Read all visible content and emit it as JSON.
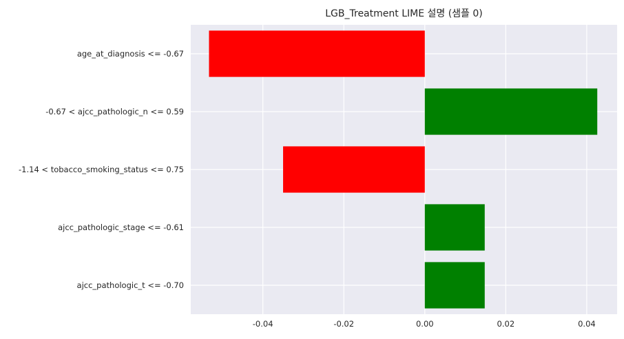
{
  "chart_data": {
    "type": "bar",
    "orientation": "horizontal",
    "title": "LGB_Treatment LIME 설명 (샘플 0)",
    "xlabel": "",
    "ylabel": "",
    "categories": [
      "age_at_diagnosis <= -0.67",
      "-0.67 < ajcc_pathologic_n <= 0.59",
      "-1.14 < tobacco_smoking_status <= 0.75",
      "ajcc_pathologic_stage <= -0.61",
      "ajcc_pathologic_t <= -0.70"
    ],
    "values": [
      -0.0533,
      0.0426,
      -0.035,
      0.0148,
      0.0148
    ],
    "xlim": [
      -0.0578,
      0.0475
    ],
    "xticks": [
      -0.04,
      -0.02,
      0.0,
      0.02,
      0.04
    ],
    "xtick_labels": [
      "-0.04",
      "-0.02",
      "0.00",
      "0.02",
      "0.04"
    ],
    "grid": true,
    "legend": "none",
    "colors": {
      "positive": "#008000",
      "negative": "#ff0000",
      "plot_background": "#eaeaf2",
      "grid": "#ffffff"
    }
  }
}
